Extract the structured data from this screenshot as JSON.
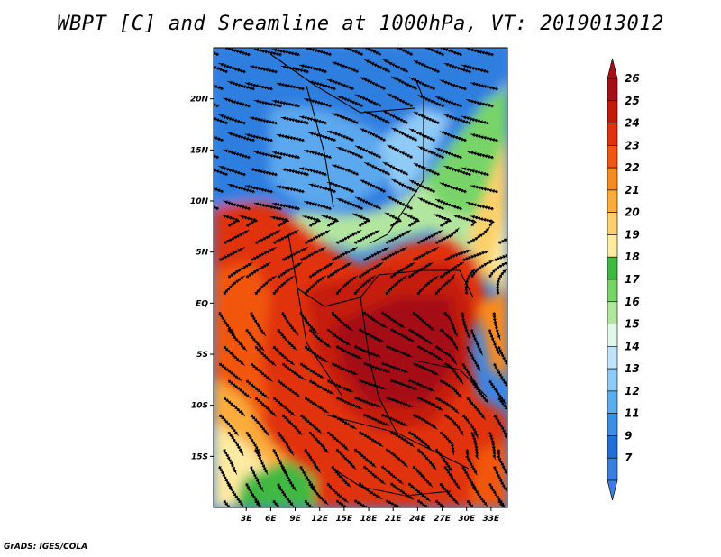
{
  "title": "WBPT [C] and Sreamline at 1000hPa, VT: 2019013012",
  "credit": "GrADS: IGES/COLA",
  "map": {
    "lon_range": [
      -1,
      35
    ],
    "lat_range": [
      -20,
      25
    ],
    "lat_ticks": [
      {
        "value": 20,
        "label": "20N"
      },
      {
        "value": 15,
        "label": "15N"
      },
      {
        "value": 10,
        "label": "10N"
      },
      {
        "value": 5,
        "label": "5N"
      },
      {
        "value": 0,
        "label": "EQ"
      },
      {
        "value": -5,
        "label": "5S"
      },
      {
        "value": -10,
        "label": "10S"
      },
      {
        "value": -15,
        "label": "15S"
      }
    ],
    "lon_ticks": [
      {
        "value": 3,
        "label": "3E"
      },
      {
        "value": 6,
        "label": "6E"
      },
      {
        "value": 9,
        "label": "9E"
      },
      {
        "value": 12,
        "label": "12E"
      },
      {
        "value": 15,
        "label": "15E"
      },
      {
        "value": 18,
        "label": "18E"
      },
      {
        "value": 21,
        "label": "21E"
      },
      {
        "value": 24,
        "label": "24E"
      },
      {
        "value": 27,
        "label": "27E"
      },
      {
        "value": 30,
        "label": "30E"
      },
      {
        "value": 33,
        "label": "33E"
      }
    ]
  },
  "colorbar": {
    "levels": [
      {
        "label": "26",
        "color": "#a50f15"
      },
      {
        "label": "25",
        "color": "#c41a0c"
      },
      {
        "label": "24",
        "color": "#e0320d"
      },
      {
        "label": "23",
        "color": "#f2560f"
      },
      {
        "label": "22",
        "color": "#fb8a1e"
      },
      {
        "label": "21",
        "color": "#fdac3a"
      },
      {
        "label": "20",
        "color": "#fdd06a"
      },
      {
        "label": "19",
        "color": "#feeaa0"
      },
      {
        "label": "18",
        "color": "#3fb843"
      },
      {
        "label": "17",
        "color": "#78d468"
      },
      {
        "label": "16",
        "color": "#b2e69e"
      },
      {
        "label": "15",
        "color": "#e1f7e9"
      },
      {
        "label": "14",
        "color": "#bfe3fb"
      },
      {
        "label": "13",
        "color": "#8fcbf6"
      },
      {
        "label": "12",
        "color": "#5cadef"
      },
      {
        "label": "11",
        "color": "#3a8ee6"
      },
      {
        "label": "9",
        "color": "#1f6fdc"
      },
      {
        "label": "7",
        "color": "#3b7de0"
      }
    ]
  }
}
